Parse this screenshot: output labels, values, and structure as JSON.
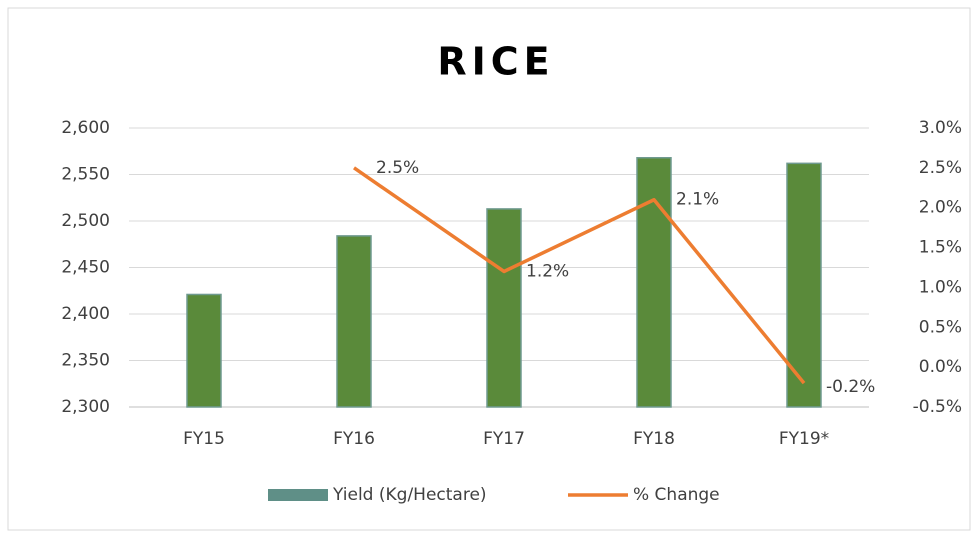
{
  "chart_data": {
    "type": "bar+line",
    "title": "RICE",
    "categories": [
      "FY15",
      "FY16",
      "FY17",
      "FY18",
      "FY19*"
    ],
    "series": [
      {
        "name": "Yield (Kg/Hectare)",
        "type": "bar",
        "color": "#5a8a3a",
        "values": [
          2421,
          2484,
          2513,
          2568,
          2562
        ]
      },
      {
        "name": "% Change",
        "type": "line",
        "axis": "y2",
        "color": "#ed7d31",
        "values": [
          null,
          2.5,
          1.2,
          2.1,
          -0.2
        ],
        "value_labels": [
          null,
          "2.5%",
          "1.2%",
          "2.1%",
          "-0.2%"
        ]
      }
    ],
    "ylim": [
      2300,
      2600
    ],
    "yticks": [
      {
        "value": 2300,
        "label": "2,300"
      },
      {
        "value": 2350,
        "label": "2,350"
      },
      {
        "value": 2400,
        "label": "2,400"
      },
      {
        "value": 2450,
        "label": "2,450"
      },
      {
        "value": 2500,
        "label": "2,500"
      },
      {
        "value": 2550,
        "label": "2,550"
      },
      {
        "value": 2600,
        "label": "2,600"
      }
    ],
    "y2lim": [
      -0.5,
      3.0
    ],
    "y2ticks": [
      {
        "value": -0.5,
        "label": "-0.5%"
      },
      {
        "value": 0,
        "label": "0.0%"
      },
      {
        "value": 0.5,
        "label": "0.5%"
      },
      {
        "value": 1,
        "label": "1.0%"
      },
      {
        "value": 1.5,
        "label": "1.5%"
      },
      {
        "value": 2,
        "label": "2.0%"
      },
      {
        "value": 2.5,
        "label": "2.5%"
      },
      {
        "value": 3,
        "label": "3.0%"
      }
    ],
    "grid": true,
    "legend": "bottom"
  }
}
